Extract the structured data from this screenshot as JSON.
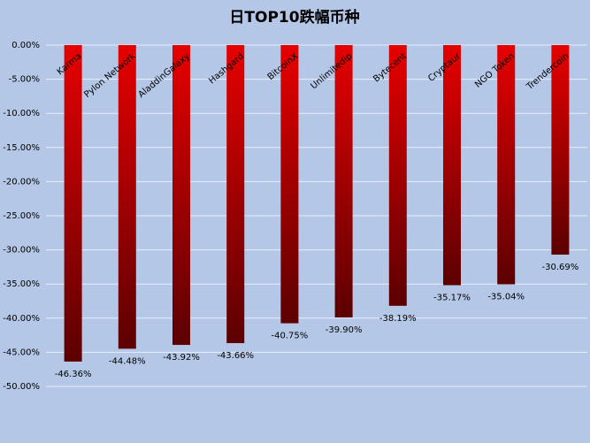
{
  "chart_data": {
    "type": "bar",
    "title": "日TOP10跌幅币种",
    "categories": [
      "Karma",
      "Pylon Network",
      "AladdinGalaxy",
      "Hashgard",
      "BitcoinX",
      "Unlimitedip",
      "Bytecent",
      "Cryptaur",
      "NGO Token",
      "Trendercoin"
    ],
    "values": [
      -46.36,
      -44.48,
      -43.92,
      -43.66,
      -40.75,
      -39.9,
      -38.19,
      -35.17,
      -35.04,
      -30.69
    ],
    "value_labels": [
      "-46.36%",
      "-44.48%",
      "-43.92%",
      "-43.66%",
      "-40.75%",
      "-39.90%",
      "-38.19%",
      "-35.17%",
      "-35.04%",
      "-30.69%"
    ],
    "color": "#e60000",
    "ylim": [
      -50,
      0
    ],
    "yticks": [
      {
        "value": 0,
        "label": "0.00%"
      },
      {
        "value": -5,
        "label": "-5.00%"
      },
      {
        "value": -10,
        "label": "-10.00%"
      },
      {
        "value": -15,
        "label": "-15.00%"
      },
      {
        "value": -20,
        "label": "-20.00%"
      },
      {
        "value": -25,
        "label": "-25.00%"
      },
      {
        "value": -30,
        "label": "-30.00%"
      },
      {
        "value": -35,
        "label": "-35.00%"
      },
      {
        "value": -40,
        "label": "-40.00%"
      },
      {
        "value": -45,
        "label": "-45.00%"
      },
      {
        "value": -50,
        "label": "-50.00%"
      }
    ],
    "grid": true
  }
}
